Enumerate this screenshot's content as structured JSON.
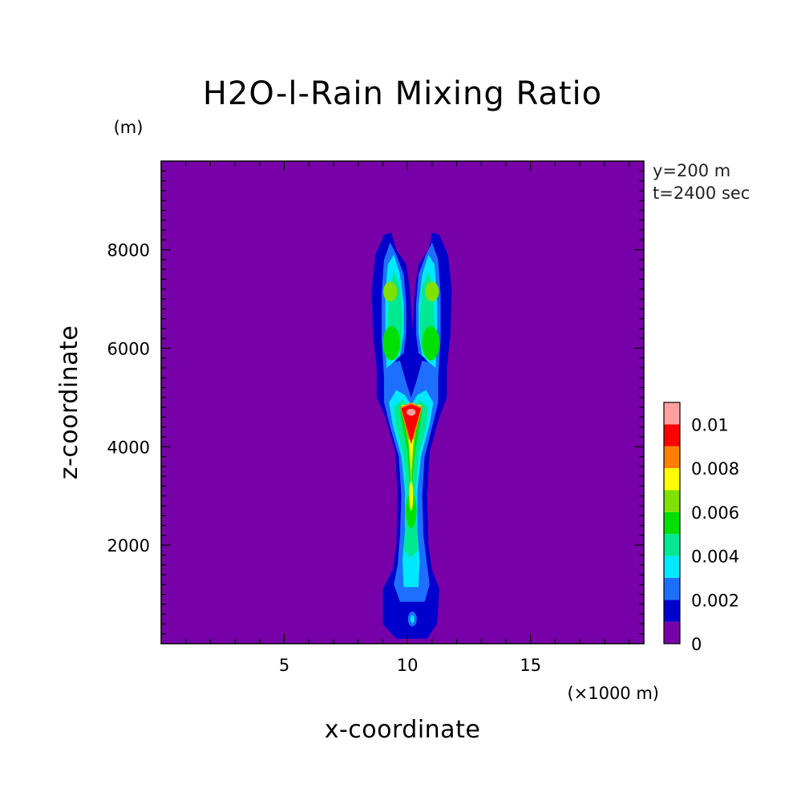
{
  "chart_data": {
    "type": "heatmap",
    "title": "H2O-l-Rain Mixing Ratio",
    "xlabel": "x-coordinate",
    "ylabel": "z-coordinate",
    "x_unit": "(×1000 m)",
    "y_unit": "(m)",
    "xlim": [
      0,
      19.6
    ],
    "ylim": [
      0,
      9800
    ],
    "x_ticks": [
      "5",
      "10",
      "15"
    ],
    "x_tick_values": [
      5,
      10,
      15
    ],
    "y_ticks": [
      "2000",
      "4000",
      "6000",
      "8000"
    ],
    "y_tick_values": [
      2000,
      4000,
      6000,
      8000
    ],
    "annotations": [
      "y=200 m",
      "t=2400 sec"
    ],
    "colorbar": {
      "levels": [
        0,
        0.001,
        0.002,
        0.003,
        0.004,
        0.005,
        0.006,
        0.007,
        0.008,
        0.009,
        0.01,
        0.011
      ],
      "labels": [
        "0",
        "0.002",
        "0.004",
        "0.006",
        "0.008",
        "0.01"
      ],
      "label_values": [
        0,
        0.002,
        0.004,
        0.006,
        0.008,
        0.01
      ],
      "colors": [
        "#7800a8",
        "#0000cc",
        "#1e6fff",
        "#00e8ff",
        "#00e890",
        "#00e000",
        "#80e000",
        "#ffff00",
        "#ff8000",
        "#ff0000",
        "#ffa0a0"
      ]
    },
    "field_description": "Twin-plume rain mixing ratio; maxima ~0.01 near x=10.2, z=4600; green cores near x=9.2 and 11.2, z=6000-7200",
    "background_color": "#7800a8"
  }
}
